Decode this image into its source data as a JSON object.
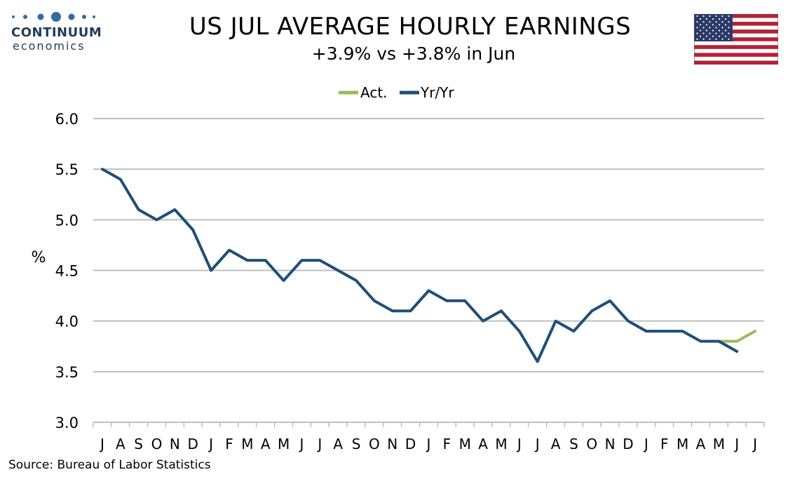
{
  "logo": {
    "name": "CONTINUUM",
    "sub": "economics"
  },
  "title": "US JUL AVERAGE HOURLY EARNINGS",
  "subtitle": "+3.9% vs +3.8% in Jun",
  "source": "Source: Bureau of Labor Statistics",
  "colors": {
    "act": "#9bbb59",
    "yr": "#1f4e79",
    "grid": "#bfbfbf"
  },
  "chart_data": {
    "type": "line",
    "ylabel": "%",
    "ylim": [
      3.0,
      6.0
    ],
    "yticks": [
      "3.0",
      "3.5",
      "4.0",
      "4.5",
      "5.0",
      "5.5",
      "6.0"
    ],
    "grid": true,
    "legend": "top-center",
    "categories": [
      "J",
      "A",
      "S",
      "O",
      "N",
      "D",
      "J",
      "F",
      "M",
      "A",
      "M",
      "J",
      "J",
      "A",
      "S",
      "O",
      "N",
      "D",
      "J",
      "F",
      "M",
      "A",
      "M",
      "J",
      "J",
      "A",
      "S",
      "O",
      "N",
      "D",
      "J",
      "F",
      "M",
      "A",
      "M",
      "J",
      "J"
    ],
    "series": [
      {
        "name": "Act.",
        "color": "#9bbb59",
        "values": [
          null,
          null,
          null,
          null,
          null,
          null,
          null,
          null,
          null,
          null,
          null,
          null,
          null,
          null,
          null,
          null,
          null,
          null,
          null,
          null,
          null,
          null,
          null,
          null,
          null,
          null,
          null,
          null,
          null,
          null,
          null,
          null,
          null,
          null,
          3.8,
          3.8,
          3.9
        ]
      },
      {
        "name": "Yr/Yr",
        "color": "#1f4e79",
        "values": [
          5.5,
          5.4,
          5.1,
          5.0,
          5.1,
          4.9,
          4.5,
          4.7,
          4.6,
          4.6,
          4.4,
          4.6,
          4.6,
          4.5,
          4.4,
          4.2,
          4.1,
          4.1,
          4.3,
          4.2,
          4.2,
          4.0,
          4.1,
          3.9,
          3.6,
          4.0,
          3.9,
          4.1,
          4.2,
          4.0,
          3.9,
          3.9,
          3.9,
          3.8,
          3.8,
          3.7,
          null
        ]
      }
    ]
  }
}
